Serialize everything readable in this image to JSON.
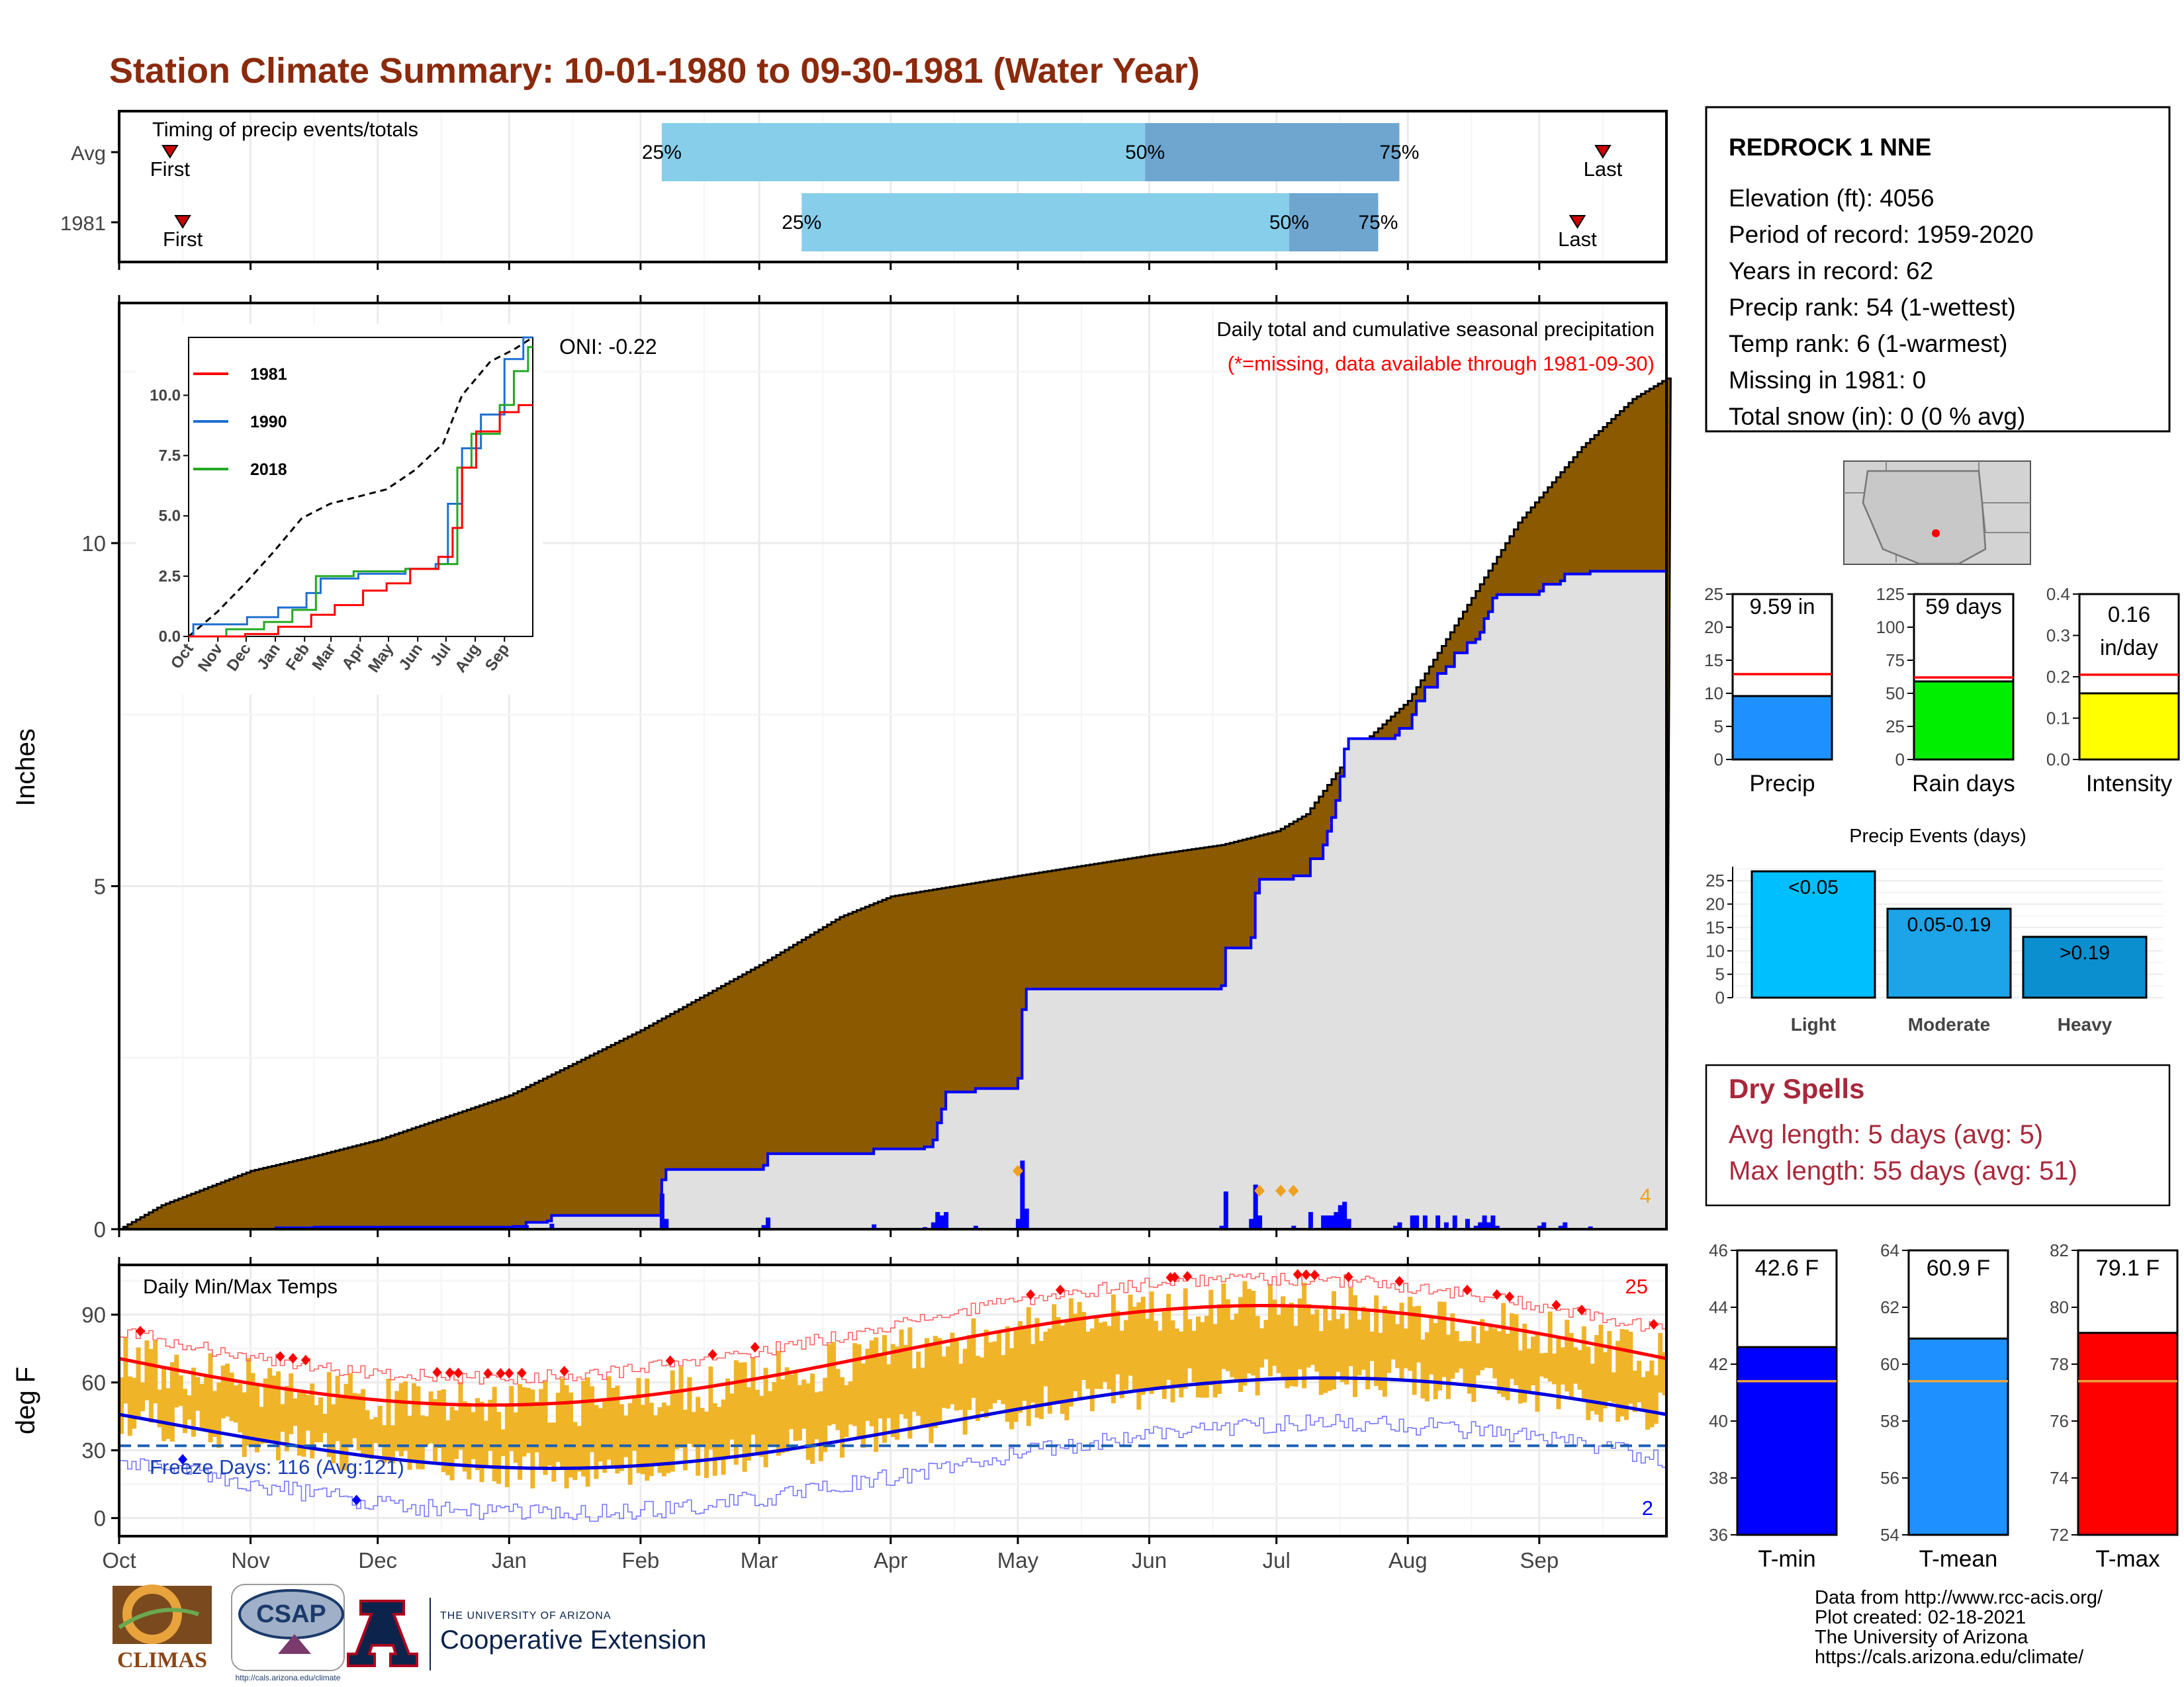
{
  "page": {
    "title": "Station Climate Summary: 10-01-1980 to 09-30-1981 (Water Year)"
  },
  "months": [
    "Oct",
    "Nov",
    "Dec",
    "Jan",
    "Feb",
    "Mar",
    "Apr",
    "May",
    "Jun",
    "Jul",
    "Aug",
    "Sep"
  ],
  "timing_panel": {
    "label": "Timing of precip events/totals",
    "rows": [
      {
        "name": "Avg",
        "first_day": 12,
        "p25": 128,
        "p50": 242,
        "p75": 302,
        "last_day": 350,
        "p25_label": "25%",
        "p50_label": "50%",
        "p75_label": "75%",
        "first_label": "First",
        "last_label": "Last"
      },
      {
        "name": "1981",
        "first_day": 15,
        "p25": 161,
        "p50": 276,
        "p75": 297,
        "last_day": 344,
        "p25_label": "25%",
        "p50_label": "50%",
        "p75_label": "75%",
        "first_label": "First",
        "last_label": "Last"
      }
    ]
  },
  "precip_panel": {
    "ylabel": "Inches",
    "yticks": [
      0,
      5,
      10
    ],
    "ylim": [
      0,
      13.5
    ],
    "oni": "ONI: -0.22",
    "caption": "Daily total and cumulative seasonal precipitation",
    "missing_note": "(*=missing, data available through 1981-09-30)",
    "missing_count": "4",
    "colors": {
      "avg_fill": "#8b5a00",
      "year_fill": "#e0e0e0",
      "year_line": "#0000ff",
      "bars": "#0000ff"
    }
  },
  "inset_chart": {
    "yticks": [
      "0.0",
      "2.5",
      "5.0",
      "7.5",
      "10.0"
    ],
    "xticks": [
      "Oct",
      "Nov",
      "Dec",
      "Jan",
      "Feb",
      "Mar",
      "Apr",
      "May",
      "Jun",
      "Jul",
      "Aug",
      "Sep"
    ],
    "legend": [
      "1981",
      "1990",
      "2018"
    ],
    "colors": [
      "#ff0000",
      "#1f6fd1",
      "#22aa22"
    ]
  },
  "temp_panel": {
    "ylabel": "deg F",
    "yticks": [
      0,
      30,
      60,
      90
    ],
    "ylim": [
      -8,
      112
    ],
    "label": "Daily Min/Max Temps",
    "freeze_label": "Freeze Days: 116 (Avg:121)",
    "record_high_count": "25",
    "record_low_count": "2",
    "freeze_line": 32
  },
  "station_box": {
    "name": "REDROCK 1 NNE",
    "lines": [
      "Elevation (ft): 4056",
      "Period of record: 1959-2020",
      "Years in record: 62",
      "Precip rank: 54 (1-wettest)",
      "Temp rank: 6 (1-warmest)",
      "Missing in 1981: 0",
      "Total snow (in): 0 (0 % avg)"
    ]
  },
  "precip_summary": [
    {
      "label": "Precip",
      "value_label": "9.59 in",
      "value": 9.59,
      "avg": 12.9,
      "ymax": 25,
      "yticks": [
        0,
        5,
        10,
        15,
        20,
        25
      ],
      "color": "#1e90ff"
    },
    {
      "label": "Rain days",
      "value_label": "59 days",
      "value": 59,
      "avg": 62,
      "ymax": 125,
      "yticks": [
        0,
        25,
        50,
        75,
        100,
        125
      ],
      "color": "#00ee00"
    },
    {
      "label": "Intensity",
      "value_label": "0.16 in/day",
      "value": 0.16,
      "avg": 0.205,
      "ymax": 0.4,
      "yticks": [
        "0.0",
        "0.1",
        "0.2",
        "0.3",
        "0.4"
      ],
      "color": "#ffff00"
    }
  ],
  "precip_events": {
    "title": "Precip Events (days)",
    "yticks": [
      0,
      5,
      10,
      15,
      20,
      25
    ],
    "bars": [
      {
        "label": "Light",
        "bar_label": "<0.05",
        "value": 27,
        "color": "#00bfff"
      },
      {
        "label": "Moderate",
        "bar_label": "0.05-0.19",
        "value": 19,
        "color": "#1ca3e8"
      },
      {
        "label": "Heavy",
        "bar_label": ">0.19",
        "value": 13,
        "color": "#0b8fcf"
      }
    ]
  },
  "dry_spells": {
    "title": "Dry Spells",
    "avg_line": "Avg length: 5 days (avg: 5)",
    "max_line": "Max length: 55 days (avg: 51)"
  },
  "temp_summary": [
    {
      "label": "T-min",
      "value_label": "42.6 F",
      "value": 42.6,
      "avg": 41.4,
      "ymin": 36,
      "ymax": 46,
      "yticks": [
        36,
        38,
        40,
        42,
        44,
        46
      ],
      "color": "#0000ff"
    },
    {
      "label": "T-mean",
      "value_label": "60.9 F",
      "value": 60.9,
      "avg": 59.4,
      "ymin": 54,
      "ymax": 64,
      "yticks": [
        54,
        56,
        58,
        60,
        62,
        64
      ],
      "color": "#1e90ff"
    },
    {
      "label": "T-max",
      "value_label": "79.1 F",
      "value": 79.1,
      "avg": 77.4,
      "ymin": 72,
      "ymax": 82,
      "yticks": [
        72,
        74,
        76,
        78,
        80,
        82
      ],
      "color": "#ff0000"
    }
  ],
  "logos": {
    "climas": "CLIMAS",
    "csap": "CSAP",
    "csap_url": "http://cals.arizona.edu/climate",
    "ua_small": "THE UNIVERSITY OF ARIZONA",
    "ua_big": "Cooperative Extension"
  },
  "credits": [
    "Data from http://www.rcc-acis.org/",
    "Plot created: 02-18-2021",
    "The University of Arizona",
    "https://cals.arizona.edu/climate/"
  ]
}
